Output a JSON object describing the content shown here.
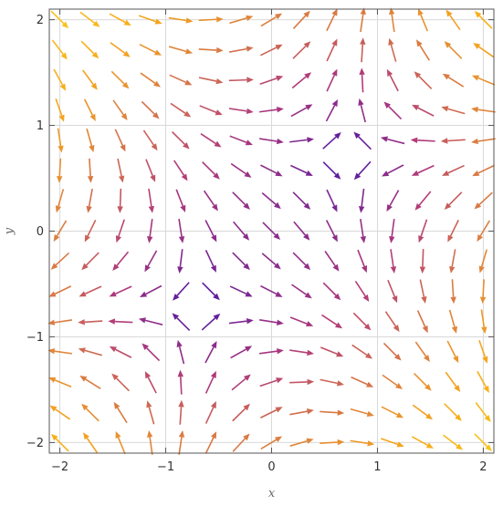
{
  "chart_data": {
    "type": "vector_field",
    "title": "",
    "xlabel": "x",
    "ylabel": "y",
    "xlim": [
      -2.1,
      2.1
    ],
    "ylim": [
      -2.1,
      2.1
    ],
    "xticks": [
      -2,
      -1,
      0,
      1,
      2
    ],
    "yticks": [
      -2,
      -1,
      0,
      1,
      2
    ],
    "xtick_labels": [
      "−2",
      "−1",
      "0",
      "1",
      "2"
    ],
    "ytick_labels": [
      "−2",
      "−1",
      "0",
      "1",
      "2"
    ],
    "grid": true,
    "grid_points_per_axis": 15,
    "field": {
      "u": "1 - x^2 + y^2 - 2*x*y",
      "v": "-1 - x^2 + y^2 + 2*x*y"
    },
    "vortex_centers": [
      [
        -1.15,
        0
      ],
      [
        1.15,
        0
      ]
    ],
    "color_scheme": {
      "low": "#3a0fae",
      "mid": "#b13a7a",
      "high": "#f7a81b",
      "edge": "#f8c21c"
    },
    "frame_color": "#555555",
    "grid_color": "#d9d9d9"
  }
}
